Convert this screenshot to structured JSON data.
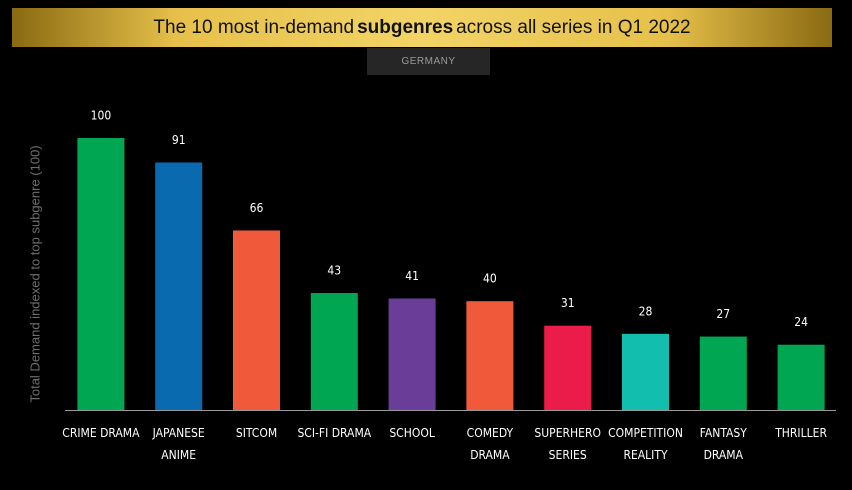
{
  "chart_data": {
    "type": "bar",
    "title_parts": [
      "The 10 most in-demand",
      "subgenres",
      "across all series in Q1 2022"
    ],
    "subtitle": "GERMANY",
    "y_label": "Total Demand indexed to top subgenre (100)",
    "categories": [
      "CRIME DRAMA",
      "JAPANESE\nANIME",
      "SITCOM",
      "SCI-FI DRAMA",
      "SCHOOL",
      "COMEDY\nDRAMA",
      "SUPERHERO\nSERIES",
      "COMPETITION\nREALITY",
      "FANTASY\nDRAMA",
      "THRILLER"
    ],
    "values": [
      100,
      91,
      66,
      43,
      41,
      40,
      31,
      28,
      27,
      24
    ],
    "colors": [
      "#00a651",
      "#0a6ab0",
      "#f05a3a",
      "#00a651",
      "#6a3d98",
      "#f05a3a",
      "#ec1c4a",
      "#12bfae",
      "#00a651",
      "#00a651"
    ],
    "ylim": [
      0,
      100
    ]
  }
}
